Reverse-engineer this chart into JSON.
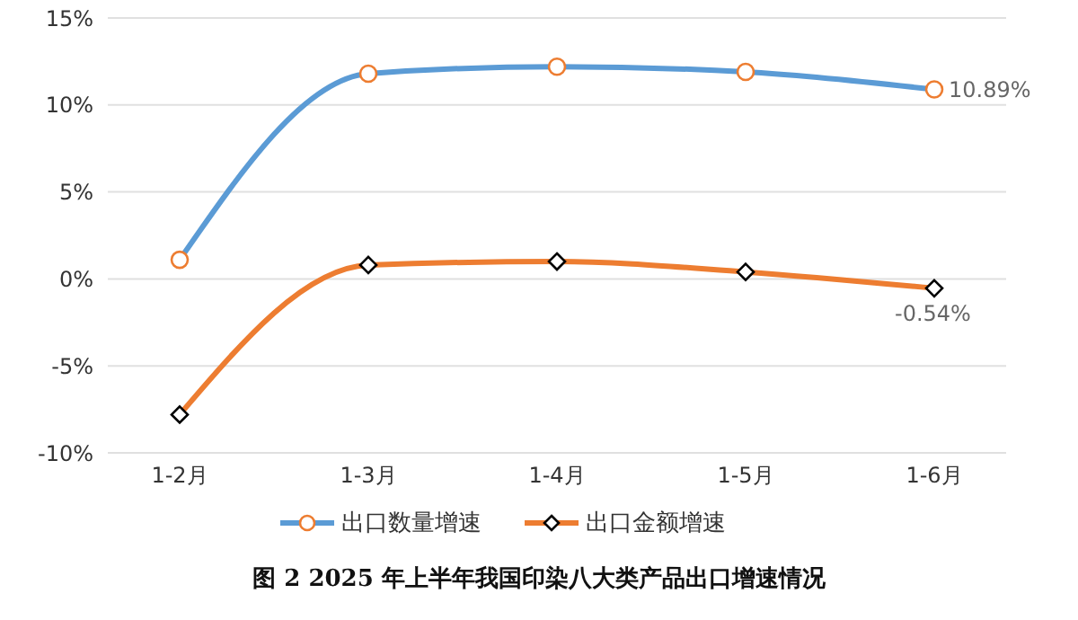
{
  "chart_data": {
    "type": "line",
    "title": "图 2 2025 年上半年我国印染八大类产品出口增速情况",
    "categories": [
      "1-2月",
      "1-3月",
      "1-4月",
      "1-5月",
      "1-6月"
    ],
    "series": [
      {
        "name": "出口数量增速",
        "color": "#5b9bd5",
        "marker": "circle",
        "values": [
          1.1,
          11.8,
          12.2,
          11.9,
          10.89
        ],
        "value_labels": [
          null,
          null,
          null,
          null,
          "10.89%"
        ]
      },
      {
        "name": "出口金额增速",
        "color": "#ed7d31",
        "marker": "diamond",
        "values": [
          -7.8,
          0.8,
          1.0,
          0.4,
          -0.54
        ],
        "value_labels": [
          null,
          null,
          null,
          null,
          "-0.54%"
        ]
      }
    ],
    "ylim": [
      -10,
      15
    ],
    "yticks": [
      {
        "value": -10,
        "label": "-10%"
      },
      {
        "value": -5,
        "label": "-5%"
      },
      {
        "value": 0,
        "label": "0%"
      },
      {
        "value": 5,
        "label": "5%"
      },
      {
        "value": 10,
        "label": "10%"
      },
      {
        "value": 15,
        "label": "15%"
      }
    ],
    "grid": "y",
    "legend": "bottom"
  }
}
